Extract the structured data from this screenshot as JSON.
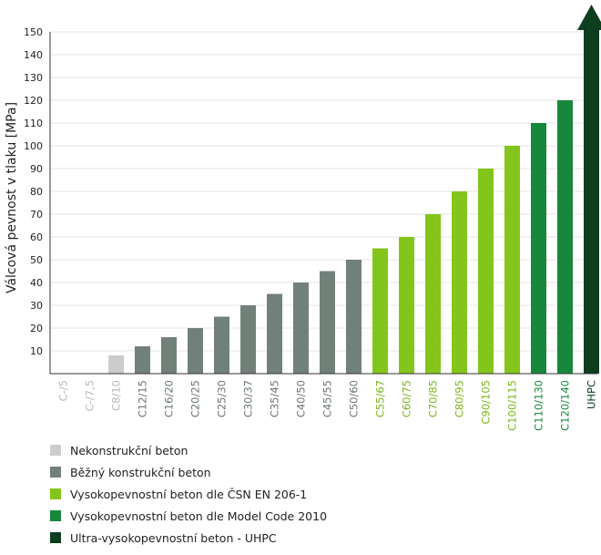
{
  "chart_data": {
    "type": "bar",
    "ylabel": "Válcová pevnost v tlaku [MPa]",
    "ylim": [
      0,
      150
    ],
    "yticks": [
      10,
      20,
      30,
      40,
      50,
      60,
      70,
      80,
      90,
      100,
      110,
      120,
      130,
      140,
      150
    ],
    "grid": true,
    "categories": [
      "C-/5",
      "C-/7,5",
      "C8/10",
      "C12/15",
      "C16/20",
      "C20/25",
      "C25/30",
      "C30/37",
      "C35/45",
      "C40/50",
      "C45/55",
      "C50/60",
      "C55/67",
      "C60/75",
      "C70/85",
      "C80/95",
      "C90/105",
      "C100/115",
      "C110/130",
      "C120/140",
      "UHPC"
    ],
    "values": [
      0,
      0,
      8,
      12,
      16,
      20,
      25,
      30,
      35,
      40,
      45,
      50,
      55,
      60,
      70,
      80,
      90,
      100,
      110,
      120,
      150
    ],
    "groups": [
      0,
      0,
      0,
      1,
      1,
      1,
      1,
      1,
      1,
      1,
      1,
      1,
      2,
      2,
      2,
      2,
      2,
      2,
      3,
      3,
      4
    ],
    "uhpc_arrow": true,
    "legend": [
      {
        "label": "Nekonstrukční beton",
        "color": "#cccccc",
        "label_color": "#b8b8b8"
      },
      {
        "label": "Běžný konstrukční beton",
        "color": "#72807a",
        "label_color": "#6a7672"
      },
      {
        "label": "Vysokopevnostní beton dle ČSN EN 206-1",
        "color": "#84c51c",
        "label_color": "#7ab61a"
      },
      {
        "label": "Vysokopevnostní beton dle Model Code 2010",
        "color": "#17873c",
        "label_color": "#17873c"
      },
      {
        "label": "Ultra-vysokopevnostní beton - UHPC",
        "color": "#0d3e1f",
        "label_color": "#0d3e1f"
      }
    ]
  }
}
